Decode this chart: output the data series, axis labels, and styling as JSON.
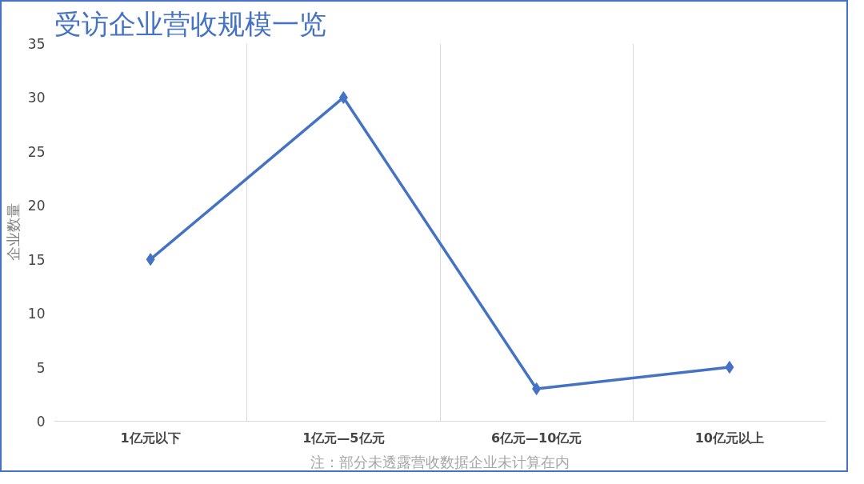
{
  "chart_data": {
    "type": "line",
    "title": "受访企业营收规模一览",
    "ylabel": "企业数量",
    "categories": [
      "1亿元以下",
      "1亿元—5亿元",
      "6亿元—10亿元",
      "10亿元以上"
    ],
    "series": [
      {
        "color": "#4472c4",
        "values": [
          15,
          30,
          3,
          5
        ]
      }
    ],
    "ylim": [
      0,
      35
    ],
    "yticks": [
      0,
      5,
      10,
      15,
      20,
      25,
      30,
      35
    ],
    "grid": "x",
    "marker": "diamond",
    "line_style": "solid",
    "annotations": [
      "注：部分未透露营收数据企业未计算在内"
    ]
  }
}
